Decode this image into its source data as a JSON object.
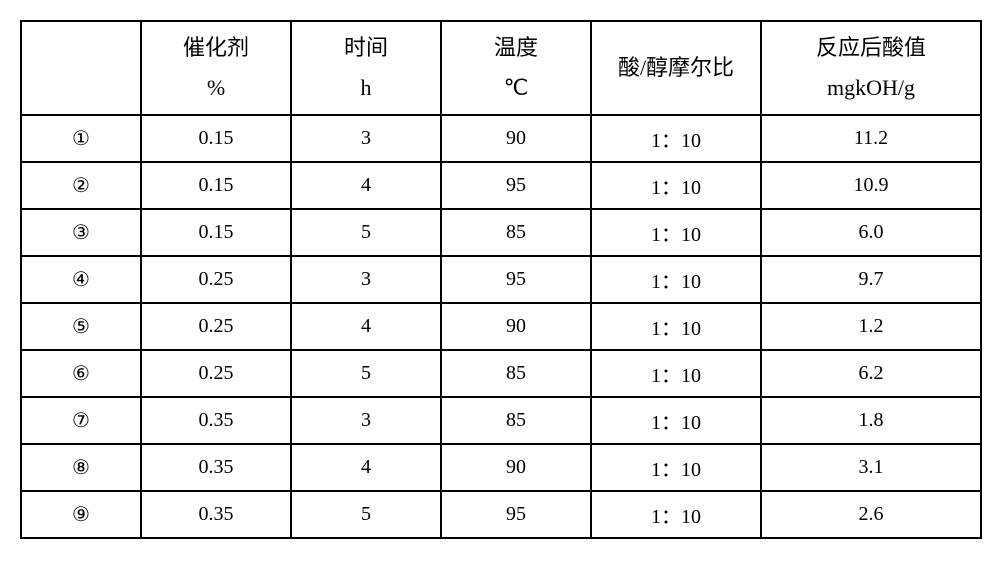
{
  "table": {
    "background_color": "#ffffff",
    "border_color": "#000000",
    "text_color": "#000000",
    "header_fontsize": 22,
    "cell_fontsize": 20,
    "columns": [
      {
        "line1": "",
        "line2": ""
      },
      {
        "line1": "催化剂",
        "line2": "%"
      },
      {
        "line1": "时间",
        "line2": "h"
      },
      {
        "line1": "温度",
        "line2": "℃"
      },
      {
        "line1": "酸/醇摩尔比",
        "line2": ""
      },
      {
        "line1": "反应后酸值",
        "line2": "mgkOH/g"
      }
    ],
    "rows": [
      {
        "idx": "①",
        "catalyst": "0.15",
        "time": "3",
        "temp": "90",
        "ratio": "1：10",
        "acid": "11.2"
      },
      {
        "idx": "②",
        "catalyst": "0.15",
        "time": "4",
        "temp": "95",
        "ratio": "1：10",
        "acid": "10.9"
      },
      {
        "idx": "③",
        "catalyst": "0.15",
        "time": "5",
        "temp": "85",
        "ratio": "1：10",
        "acid": "6.0"
      },
      {
        "idx": "④",
        "catalyst": "0.25",
        "time": "3",
        "temp": "95",
        "ratio": "1：10",
        "acid": "9.7"
      },
      {
        "idx": "⑤",
        "catalyst": "0.25",
        "time": "4",
        "temp": "90",
        "ratio": "1：10",
        "acid": "1.2"
      },
      {
        "idx": "⑥",
        "catalyst": "0.25",
        "time": "5",
        "temp": "85",
        "ratio": "1：10",
        "acid": "6.2"
      },
      {
        "idx": "⑦",
        "catalyst": "0.35",
        "time": "3",
        "temp": "85",
        "ratio": "1：10",
        "acid": "1.8"
      },
      {
        "idx": "⑧",
        "catalyst": "0.35",
        "time": "4",
        "temp": "90",
        "ratio": "1：10",
        "acid": "3.1"
      },
      {
        "idx": "⑨",
        "catalyst": "0.35",
        "time": "5",
        "temp": "95",
        "ratio": "1：10",
        "acid": "2.6"
      }
    ]
  }
}
